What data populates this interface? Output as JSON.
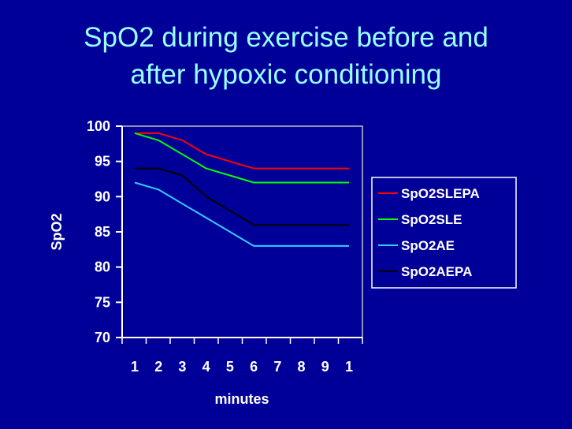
{
  "slide": {
    "title_line1": "SpO2 during exercise before and",
    "title_line2": "after hypoxic conditioning",
    "background": "#000099",
    "title_color": "#99ffff"
  },
  "chart_data": {
    "type": "line",
    "title": "SpO2 during exercise before and after hypoxic conditioning",
    "xlabel": "minutes",
    "ylabel": "SpO2",
    "categories": [
      "1",
      "2",
      "3",
      "4",
      "5",
      "6",
      "7",
      "8",
      "9",
      "1"
    ],
    "ylim": [
      70,
      100
    ],
    "yticks": [
      100,
      95,
      90,
      85,
      80,
      75,
      70
    ],
    "grid": false,
    "legend_position": "right",
    "series": [
      {
        "name": "SpO2SLEPA",
        "color": "#ff0000",
        "values": [
          99,
          99,
          98,
          96,
          95,
          94,
          94,
          94,
          94,
          94
        ]
      },
      {
        "name": "SpO2SLE",
        "color": "#00ff00",
        "values": [
          99,
          98,
          96,
          94,
          93,
          92,
          92,
          92,
          92,
          92
        ]
      },
      {
        "name": "SpO2AE",
        "color": "#33ccff",
        "values": [
          92,
          91,
          89,
          87,
          85,
          83,
          83,
          83,
          83,
          83
        ]
      },
      {
        "name": "SpO2AEPA",
        "color": "#000000",
        "values": [
          94,
          94,
          93,
          90,
          88,
          86,
          86,
          86,
          86,
          86
        ]
      }
    ]
  }
}
